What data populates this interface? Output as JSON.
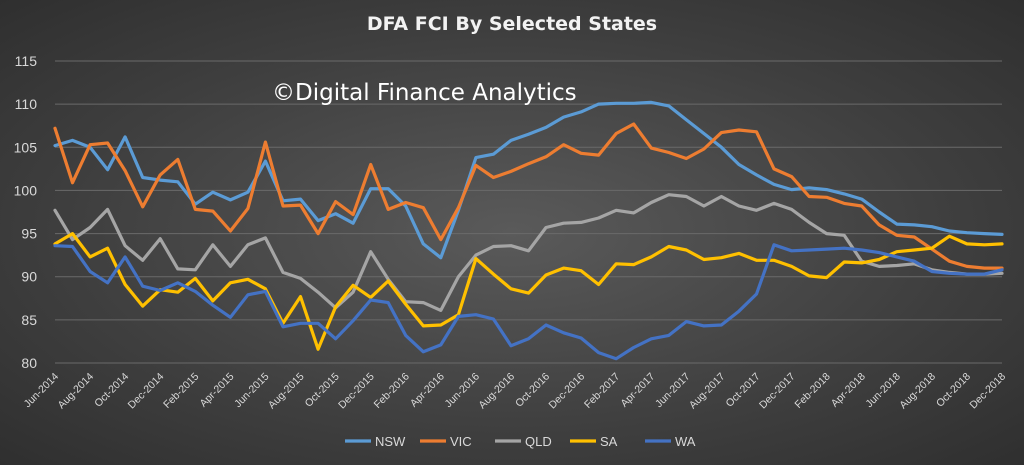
{
  "chart_data": {
    "type": "line",
    "title": "DFA FCI By Selected States",
    "watermark": "©Digital Finance Analytics",
    "xlabel": "",
    "ylabel": "",
    "ylim": [
      80,
      115
    ],
    "yticks": [
      80,
      85,
      90,
      95,
      100,
      105,
      110,
      115
    ],
    "grid": true,
    "legend_position": "bottom",
    "x": [
      "Jun-2014",
      "Jul-2014",
      "Aug-2014",
      "Sep-2014",
      "Oct-2014",
      "Nov-2014",
      "Dec-2014",
      "Jan-2015",
      "Feb-2015",
      "Mar-2015",
      "Apr-2015",
      "May-2015",
      "Jun-2015",
      "Jul-2015",
      "Aug-2015",
      "Sep-2015",
      "Oct-2015",
      "Nov-2015",
      "Dec-2015",
      "Jan-2016",
      "Feb-2016",
      "Mar-2016",
      "Apr-2016",
      "May-2016",
      "Jun-2016",
      "Jul-2016",
      "Aug-2016",
      "Sep-2016",
      "Oct-2016",
      "Nov-2016",
      "Dec-2016",
      "Jan-2017",
      "Feb-2017",
      "Mar-2017",
      "Apr-2017",
      "May-2017",
      "Jun-2017",
      "Jul-2017",
      "Aug-2017",
      "Sep-2017",
      "Oct-2017",
      "Nov-2017",
      "Dec-2017",
      "Jan-2018",
      "Feb-2018",
      "Mar-2018",
      "Apr-2018",
      "May-2018",
      "Jun-2018",
      "Jul-2018",
      "Aug-2018",
      "Sep-2018",
      "Oct-2018",
      "Nov-2018",
      "Dec-2018"
    ],
    "x_tick_labels": [
      "Jun-2014",
      "Aug-2014",
      "Oct-2014",
      "Dec-2014",
      "Feb-2015",
      "Apr-2015",
      "Jun-2015",
      "Aug-2015",
      "Oct-2015",
      "Dec-2015",
      "Feb-2016",
      "Apr-2016",
      "Jun-2016",
      "Aug-2016",
      "Oct-2016",
      "Dec-2016",
      "Feb-2017",
      "Apr-2017",
      "Jun-2017",
      "Aug-2017",
      "Oct-2017",
      "Dec-2017",
      "Feb-2018",
      "Apr-2018",
      "Jun-2018",
      "Aug-2018",
      "Oct-2018",
      "Dec-2018"
    ],
    "series": [
      {
        "name": "NSW",
        "color": "#5b9bd5",
        "values": [
          105.2,
          105.8,
          105.0,
          102.4,
          106.2,
          101.5,
          101.2,
          101.0,
          98.4,
          99.8,
          98.9,
          99.8,
          103.4,
          98.8,
          99.0,
          96.5,
          97.3,
          96.2,
          100.2,
          100.2,
          98.2,
          93.8,
          92.2,
          97.7,
          103.8,
          104.2,
          105.8,
          106.5,
          107.3,
          108.5,
          109.1,
          110.0,
          110.1,
          110.1,
          110.2,
          109.8,
          108.2,
          106.6,
          105.0,
          103.0,
          101.8,
          100.7,
          100.1,
          100.3,
          100.1,
          99.6,
          99.0,
          97.5,
          96.1,
          96.0,
          95.8,
          95.3,
          95.1,
          95.0,
          94.9
        ]
      },
      {
        "name": "VIC",
        "color": "#ed7d31",
        "values": [
          107.2,
          100.9,
          105.3,
          105.5,
          102.3,
          98.1,
          101.8,
          103.6,
          97.8,
          97.6,
          95.3,
          97.9,
          105.6,
          98.2,
          98.3,
          95.0,
          98.7,
          97.2,
          103.0,
          97.8,
          98.6,
          98.0,
          94.3,
          98.0,
          102.9,
          101.5,
          102.2,
          103.1,
          103.9,
          105.3,
          104.3,
          104.1,
          106.6,
          107.7,
          104.9,
          104.4,
          103.7,
          104.8,
          106.7,
          107.0,
          106.8,
          102.5,
          101.6,
          99.3,
          99.2,
          98.5,
          98.2,
          96.0,
          94.8,
          94.6,
          93.2,
          91.8,
          91.2,
          91.0,
          91.0
        ]
      },
      {
        "name": "QLD",
        "color": "#a5a5a5",
        "values": [
          97.7,
          94.3,
          95.7,
          97.8,
          93.6,
          91.9,
          94.4,
          90.9,
          90.8,
          93.7,
          91.2,
          93.7,
          94.5,
          90.5,
          89.8,
          88.2,
          86.4,
          88.2,
          92.9,
          89.7,
          87.1,
          87.0,
          86.1,
          90.0,
          92.5,
          93.5,
          93.6,
          93.0,
          95.7,
          96.2,
          96.3,
          96.8,
          97.7,
          97.4,
          98.6,
          99.5,
          99.3,
          98.2,
          99.3,
          98.2,
          97.7,
          98.5,
          97.8,
          96.3,
          95.0,
          94.8,
          91.8,
          91.2,
          91.3,
          91.5,
          90.8,
          90.5,
          90.3,
          90.3,
          90.4
        ]
      },
      {
        "name": "SA",
        "color": "#ffc000",
        "values": [
          93.8,
          95.0,
          92.3,
          93.3,
          89.1,
          86.6,
          88.5,
          88.2,
          89.8,
          87.2,
          89.3,
          89.7,
          88.6,
          84.6,
          87.7,
          81.6,
          86.5,
          89.0,
          87.6,
          89.5,
          86.8,
          84.3,
          84.4,
          85.6,
          92.1,
          90.3,
          88.6,
          88.1,
          90.2,
          91.0,
          90.7,
          89.1,
          91.5,
          91.4,
          92.3,
          93.5,
          93.1,
          92.0,
          92.2,
          92.7,
          91.9,
          91.9,
          91.2,
          90.1,
          89.9,
          91.7,
          91.6,
          92.0,
          92.9,
          93.1,
          93.3,
          94.7,
          93.8,
          93.7,
          93.8
        ]
      },
      {
        "name": "WA",
        "color": "#4472c4",
        "values": [
          93.6,
          93.5,
          90.6,
          89.3,
          92.3,
          88.9,
          88.4,
          89.3,
          88.3,
          86.7,
          85.3,
          87.9,
          88.3,
          84.2,
          84.6,
          84.6,
          82.8,
          84.9,
          87.3,
          87.0,
          83.2,
          81.3,
          82.1,
          85.4,
          85.6,
          85.1,
          82.0,
          82.8,
          84.4,
          83.5,
          82.9,
          81.2,
          80.5,
          81.8,
          82.8,
          83.2,
          84.8,
          84.3,
          84.4,
          86.0,
          88.0,
          93.7,
          93.0,
          93.1,
          93.2,
          93.3,
          93.1,
          92.8,
          92.3,
          91.8,
          90.6,
          90.4,
          90.3,
          90.3,
          90.8
        ]
      }
    ]
  }
}
